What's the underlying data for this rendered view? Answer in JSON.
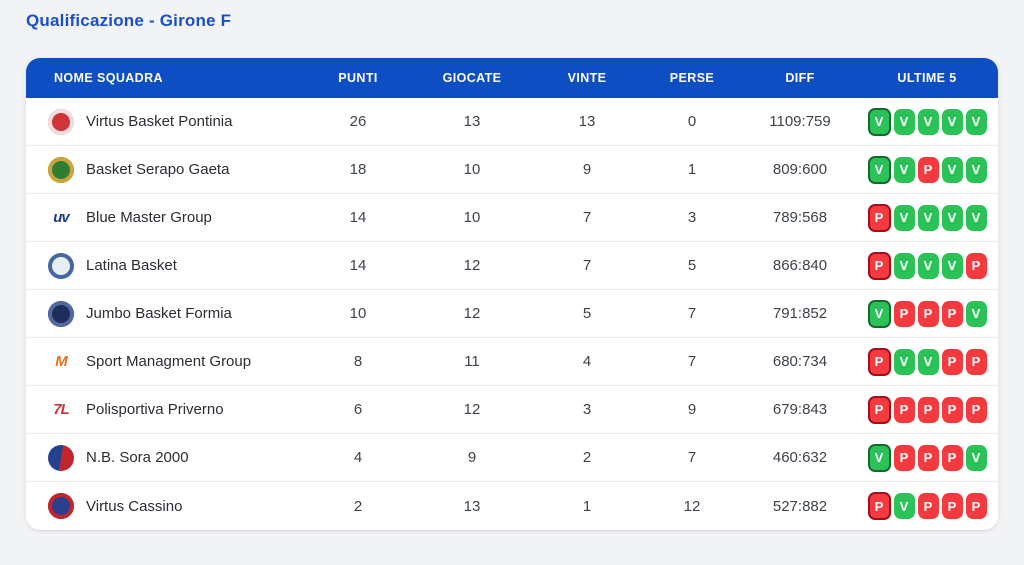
{
  "page_title": "Qualificazione - Girone F",
  "colors": {
    "accent_header": "#0d4ec2",
    "title_text": "#1b4fc8",
    "win_badge": "#2bc257",
    "win_badge_border": "#14692e",
    "loss_badge": "#f4393f",
    "loss_badge_border": "#a50f1c",
    "page_background": "#f2f3f5"
  },
  "table": {
    "columns": {
      "name": "NOME SQUADRA",
      "points": "PUNTI",
      "played": "GIOCATE",
      "won": "VINTE",
      "lost": "PERSE",
      "diff": "DIFF",
      "last5": "ULTIME 5"
    },
    "rows": [
      {
        "team": "Virtus Basket Pontinia",
        "punti": "26",
        "giocate": "13",
        "vinte": "13",
        "perse": "0",
        "diff": "1109:759",
        "ultime5": [
          "V",
          "V",
          "V",
          "V",
          "V"
        ],
        "logo": {
          "style": "circle",
          "bg": "#d13438",
          "detail": "#f5dede"
        }
      },
      {
        "team": "Basket Serapo Gaeta",
        "punti": "18",
        "giocate": "10",
        "vinte": "9",
        "perse": "1",
        "diff": "809:600",
        "ultime5": [
          "V",
          "V",
          "P",
          "V",
          "V"
        ],
        "logo": {
          "style": "circle",
          "bg": "#2e7d32",
          "detail": "#c9a53c"
        }
      },
      {
        "team": "Blue Master Group",
        "punti": "14",
        "giocate": "10",
        "vinte": "7",
        "perse": "3",
        "diff": "789:568",
        "ultime5": [
          "P",
          "V",
          "V",
          "V",
          "V"
        ],
        "logo": {
          "style": "text",
          "text": "uv",
          "color": "#1e3a8a"
        }
      },
      {
        "team": "Latina Basket",
        "punti": "14",
        "giocate": "12",
        "vinte": "7",
        "perse": "5",
        "diff": "866:840",
        "ultime5": [
          "P",
          "V",
          "V",
          "V",
          "P"
        ],
        "logo": {
          "style": "circle",
          "bg": "#e8edf5",
          "detail": "#46669f"
        }
      },
      {
        "team": "Jumbo Basket Formia",
        "punti": "10",
        "giocate": "12",
        "vinte": "5",
        "perse": "7",
        "diff": "791:852",
        "ultime5": [
          "V",
          "P",
          "P",
          "P",
          "V"
        ],
        "logo": {
          "style": "circle",
          "bg": "#1e2d5c",
          "detail": "#51699f"
        }
      },
      {
        "team": "Sport Managment Group",
        "punti": "8",
        "giocate": "11",
        "vinte": "4",
        "perse": "7",
        "diff": "680:734",
        "ultime5": [
          "P",
          "V",
          "V",
          "P",
          "P"
        ],
        "logo": {
          "style": "text",
          "text": "M",
          "color": "#e2711d"
        }
      },
      {
        "team": "Polisportiva Priverno",
        "punti": "6",
        "giocate": "12",
        "vinte": "3",
        "perse": "9",
        "diff": "679:843",
        "ultime5": [
          "P",
          "P",
          "P",
          "P",
          "P"
        ],
        "logo": {
          "style": "text",
          "text": "7L",
          "color": "#c8353f"
        }
      },
      {
        "team": "N.B. Sora 2000",
        "punti": "4",
        "giocate": "9",
        "vinte": "2",
        "perse": "7",
        "diff": "460:632",
        "ultime5": [
          "V",
          "P",
          "P",
          "P",
          "V"
        ],
        "logo": {
          "style": "split",
          "colors": [
            "#25408f",
            "#c0262c"
          ]
        }
      },
      {
        "team": "Virtus Cassino",
        "punti": "2",
        "giocate": "13",
        "vinte": "1",
        "perse": "12",
        "diff": "527:882",
        "ultime5": [
          "P",
          "V",
          "P",
          "P",
          "P"
        ],
        "logo": {
          "style": "circle",
          "bg": "#2b3f8c",
          "detail": "#c1272d"
        }
      }
    ],
    "badge_legend": {
      "win_letter": "V",
      "loss_letter": "P"
    }
  }
}
